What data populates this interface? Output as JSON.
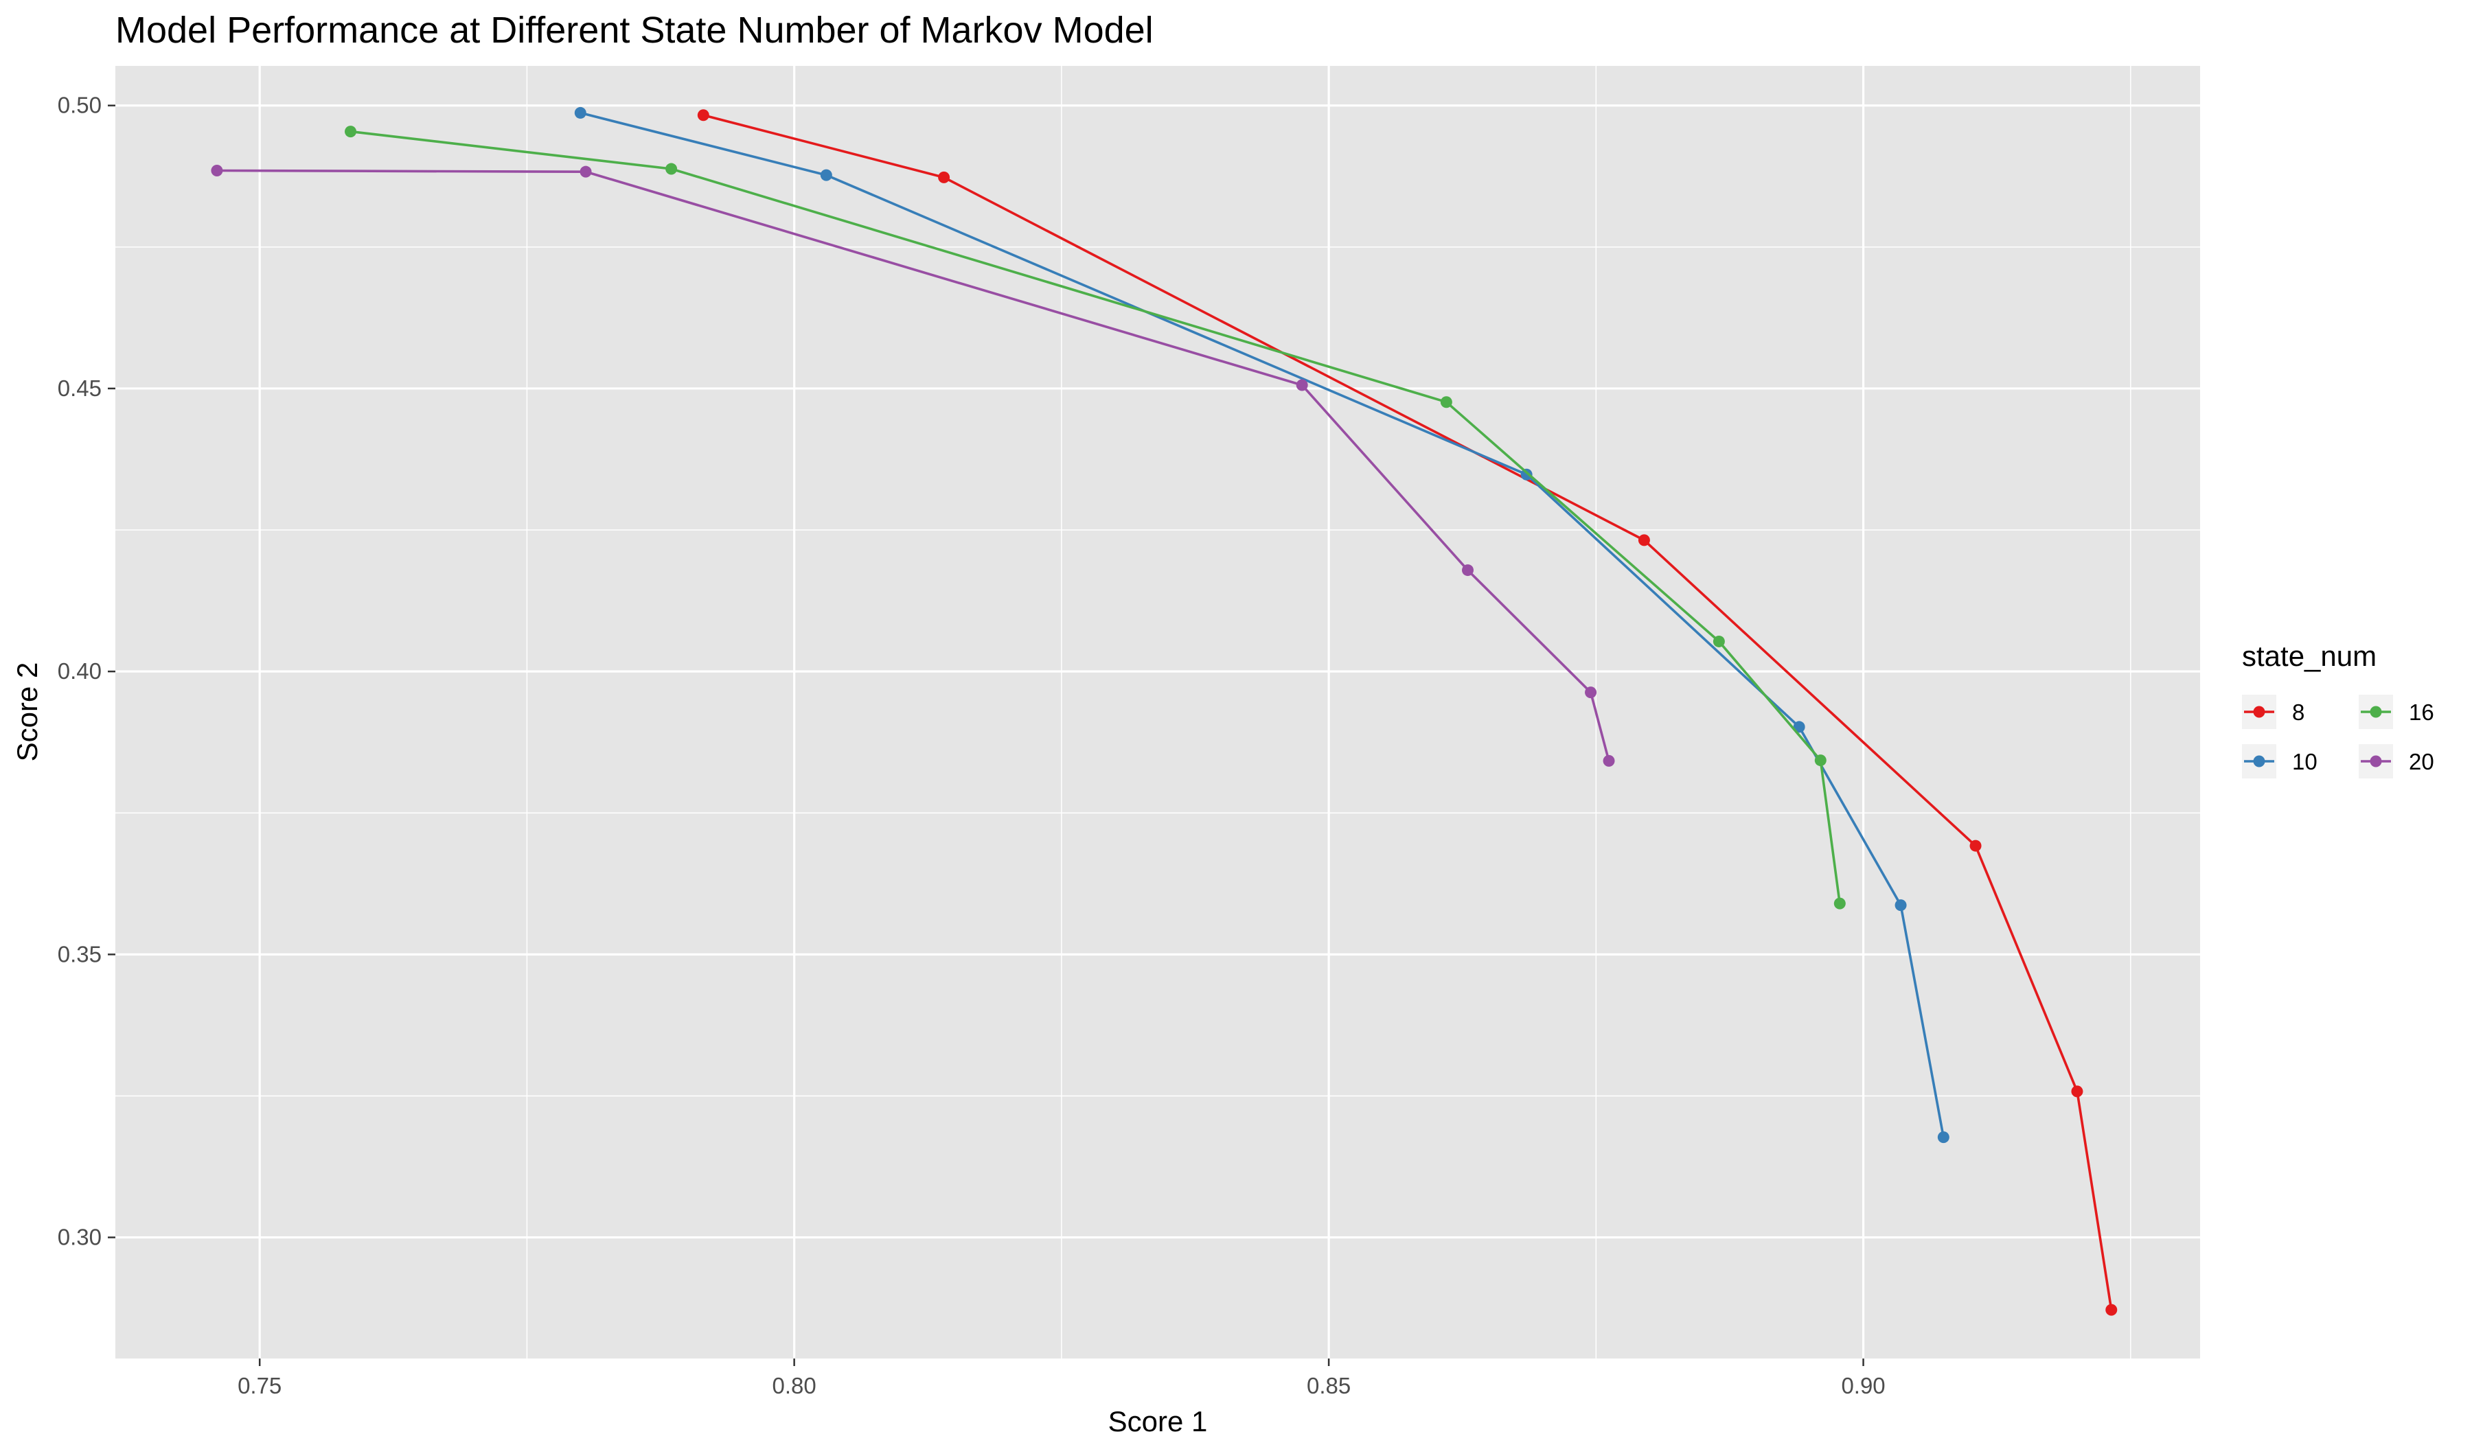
{
  "chart_data": {
    "type": "line",
    "title": "Model Performance at Different State Number of Markov Model",
    "xlabel": "Score 1",
    "ylabel": "Score 2",
    "xlim": [
      0.7365,
      0.9315
    ],
    "ylim": [
      0.2786,
      0.507
    ],
    "x_ticks": [
      0.75,
      0.8,
      0.85,
      0.9
    ],
    "x_tick_labels": [
      "0.75",
      "0.80",
      "0.85",
      "0.90"
    ],
    "y_ticks": [
      0.3,
      0.35,
      0.4,
      0.45,
      0.5
    ],
    "y_tick_labels": [
      "0.30",
      "0.35",
      "0.40",
      "0.45",
      "0.50"
    ],
    "grid": true,
    "legend": {
      "title": "state_num",
      "position": "right",
      "columns": 2
    },
    "series": [
      {
        "name": "8",
        "color": "#E41A1C",
        "points": [
          [
            0.7915,
            0.4983
          ],
          [
            0.814,
            0.4873
          ],
          [
            0.8795,
            0.4232
          ],
          [
            0.9105,
            0.3692
          ],
          [
            0.92,
            0.3258
          ],
          [
            0.9232,
            0.2872
          ]
        ]
      },
      {
        "name": "10",
        "color": "#377EB8",
        "points": [
          [
            0.78,
            0.4987
          ],
          [
            0.803,
            0.4877
          ],
          [
            0.8685,
            0.4348
          ],
          [
            0.894,
            0.3902
          ],
          [
            0.9035,
            0.3587
          ],
          [
            0.9075,
            0.3177
          ]
        ]
      },
      {
        "name": "16",
        "color": "#4DAF4A",
        "points": [
          [
            0.7585,
            0.4954
          ],
          [
            0.7885,
            0.4888
          ],
          [
            0.861,
            0.4476
          ],
          [
            0.8865,
            0.4053
          ],
          [
            0.896,
            0.3843
          ],
          [
            0.8978,
            0.359
          ]
        ]
      },
      {
        "name": "20",
        "color": "#984EA3",
        "points": [
          [
            0.746,
            0.4885
          ],
          [
            0.7805,
            0.4883
          ],
          [
            0.8475,
            0.4506
          ],
          [
            0.863,
            0.4179
          ],
          [
            0.8745,
            0.3963
          ],
          [
            0.8762,
            0.3842
          ]
        ]
      }
    ]
  }
}
